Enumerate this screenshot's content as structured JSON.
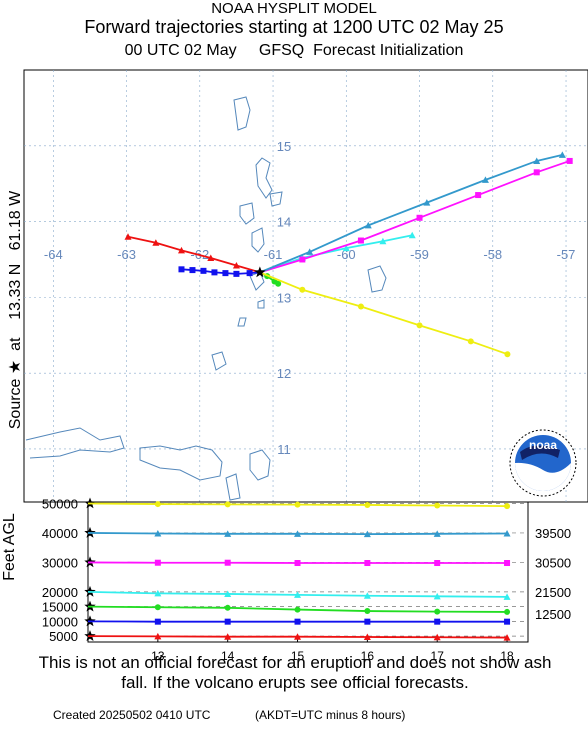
{
  "header": {
    "model": "NOAA HYSPLIT MODEL",
    "title": "Forward trajectories starting at 1200 UTC 02 May 25",
    "subtitle": "00 UTC 02 May     GFSQ  Forecast Initialization"
  },
  "source_label": "Source ★  at    13.33 N   61.18 W",
  "disclaimer": "This is not an official forecast for an eruption and does not show ash fall. If the volcano erupts see official forecasts.",
  "footer": {
    "created": "Created 20250502 0410 UTC",
    "timezone_note": "(AKDT=UTC minus 8 hours)"
  },
  "logo_text": "noaa",
  "colors": {
    "red": "#ee1111",
    "blue": "#1111ee",
    "green": "#22dd22",
    "cyan": "#33eeee",
    "magenta": "#ff11ff",
    "steelblue": "#3399cc",
    "yellow": "#eeee11"
  },
  "chart_data": [
    {
      "type": "line",
      "kind": "trajectory-map",
      "lon_ticks": [
        "-64",
        "-63",
        "-62",
        "-61",
        "-60",
        "-59",
        "-58",
        "-57"
      ],
      "lat_ticks": [
        "15",
        "14",
        "13",
        "12",
        "11"
      ],
      "xlim": [
        -64.4,
        -56.7
      ],
      "ylim": [
        10.3,
        16.0
      ],
      "source": {
        "lon": -61.18,
        "lat": 13.33
      },
      "series": [
        {
          "color": "#ee1111",
          "points": [
            [
              -61.18,
              13.33
            ],
            [
              -61.5,
              13.42
            ],
            [
              -61.85,
              13.52
            ],
            [
              -62.25,
              13.62
            ],
            [
              -62.6,
              13.72
            ],
            [
              -62.98,
              13.8
            ]
          ]
        },
        {
          "color": "#1111ee",
          "points": [
            [
              -61.18,
              13.33
            ],
            [
              -61.32,
              13.32
            ],
            [
              -61.5,
              13.31
            ],
            [
              -61.65,
              13.32
            ],
            [
              -61.8,
              13.33
            ],
            [
              -61.95,
              13.35
            ],
            [
              -62.1,
              13.36
            ],
            [
              -62.25,
              13.37
            ]
          ]
        },
        {
          "color": "#22dd22",
          "points": [
            [
              -61.18,
              13.33
            ],
            [
              -61.08,
              13.28
            ],
            [
              -60.98,
              13.21
            ],
            [
              -60.93,
              13.18
            ]
          ]
        },
        {
          "color": "#33eeee",
          "points": [
            [
              -61.18,
              13.33
            ],
            [
              -60.6,
              13.52
            ],
            [
              -60.0,
              13.65
            ],
            [
              -59.5,
              13.74
            ],
            [
              -59.1,
              13.82
            ]
          ]
        },
        {
          "color": "#ff11ff",
          "points": [
            [
              -61.18,
              13.33
            ],
            [
              -60.6,
              13.5
            ],
            [
              -59.8,
              13.75
            ],
            [
              -59.0,
              14.05
            ],
            [
              -58.2,
              14.35
            ],
            [
              -57.4,
              14.65
            ],
            [
              -56.95,
              14.8
            ]
          ]
        },
        {
          "color": "#3399cc",
          "points": [
            [
              -61.18,
              13.33
            ],
            [
              -60.5,
              13.6
            ],
            [
              -59.7,
              13.95
            ],
            [
              -58.9,
              14.25
            ],
            [
              -58.1,
              14.55
            ],
            [
              -57.4,
              14.8
            ],
            [
              -57.05,
              14.88
            ]
          ]
        },
        {
          "color": "#eeee11",
          "points": [
            [
              -61.18,
              13.33
            ],
            [
              -60.6,
              13.1
            ],
            [
              -59.8,
              12.88
            ],
            [
              -59.0,
              12.63
            ],
            [
              -58.3,
              12.42
            ],
            [
              -57.8,
              12.25
            ]
          ]
        }
      ]
    },
    {
      "type": "line",
      "kind": "height-profile",
      "ylabel": "Feet AGL",
      "x_ticks": [
        "13",
        "14",
        "15",
        "16",
        "17",
        "18"
      ],
      "x_range": [
        12,
        18.3
      ],
      "y_ticks": [
        "50000",
        "40000",
        "30000",
        "20000",
        "15000",
        "10000",
        "5000"
      ],
      "ylim": [
        3000,
        50500
      ],
      "dashed_levels": [
        5000,
        10000,
        15000,
        20000,
        30000,
        40000,
        50000
      ],
      "right_labels": [
        "39500",
        "30500",
        "21500",
        "12500"
      ],
      "series": [
        {
          "color": "#eeee11",
          "start": 50000,
          "values": [
            {
              "x": 13,
              "y": 49800
            },
            {
              "x": 14,
              "y": 49700
            },
            {
              "x": 15,
              "y": 49600
            },
            {
              "x": 16,
              "y": 49500
            },
            {
              "x": 17,
              "y": 49300
            },
            {
              "x": 18,
              "y": 49100
            }
          ]
        },
        {
          "color": "#3399cc",
          "start": 40000,
          "values": [
            {
              "x": 13,
              "y": 39800
            },
            {
              "x": 14,
              "y": 39700
            },
            {
              "x": 15,
              "y": 39700
            },
            {
              "x": 16,
              "y": 39600
            },
            {
              "x": 17,
              "y": 39700
            },
            {
              "x": 18,
              "y": 39800
            }
          ]
        },
        {
          "color": "#ff11ff",
          "start": 30000,
          "values": [
            {
              "x": 13,
              "y": 29900
            },
            {
              "x": 14,
              "y": 29900
            },
            {
              "x": 15,
              "y": 29800
            },
            {
              "x": 16,
              "y": 29800
            },
            {
              "x": 17,
              "y": 29800
            },
            {
              "x": 18,
              "y": 29800
            }
          ]
        },
        {
          "color": "#33eeee",
          "start": 20000,
          "values": [
            {
              "x": 13,
              "y": 19500
            },
            {
              "x": 14,
              "y": 19300
            },
            {
              "x": 15,
              "y": 19000
            },
            {
              "x": 16,
              "y": 18700
            },
            {
              "x": 17,
              "y": 18500
            },
            {
              "x": 18,
              "y": 18300
            }
          ]
        },
        {
          "color": "#22dd22",
          "start": 15000,
          "values": [
            {
              "x": 13,
              "y": 14800
            },
            {
              "x": 14,
              "y": 14600
            },
            {
              "x": 15,
              "y": 14000
            },
            {
              "x": 16,
              "y": 13500
            },
            {
              "x": 17,
              "y": 13300
            },
            {
              "x": 18,
              "y": 13200
            }
          ]
        },
        {
          "color": "#1111ee",
          "start": 10000,
          "values": [
            {
              "x": 13,
              "y": 9900
            },
            {
              "x": 14,
              "y": 9900
            },
            {
              "x": 15,
              "y": 9900
            },
            {
              "x": 16,
              "y": 9900
            },
            {
              "x": 17,
              "y": 9900
            },
            {
              "x": 18,
              "y": 9900
            }
          ]
        },
        {
          "color": "#ee1111",
          "start": 5000,
          "values": [
            {
              "x": 13,
              "y": 4900
            },
            {
              "x": 14,
              "y": 4800
            },
            {
              "x": 15,
              "y": 4800
            },
            {
              "x": 16,
              "y": 4700
            },
            {
              "x": 17,
              "y": 4600
            },
            {
              "x": 18,
              "y": 4500
            }
          ]
        }
      ]
    }
  ]
}
